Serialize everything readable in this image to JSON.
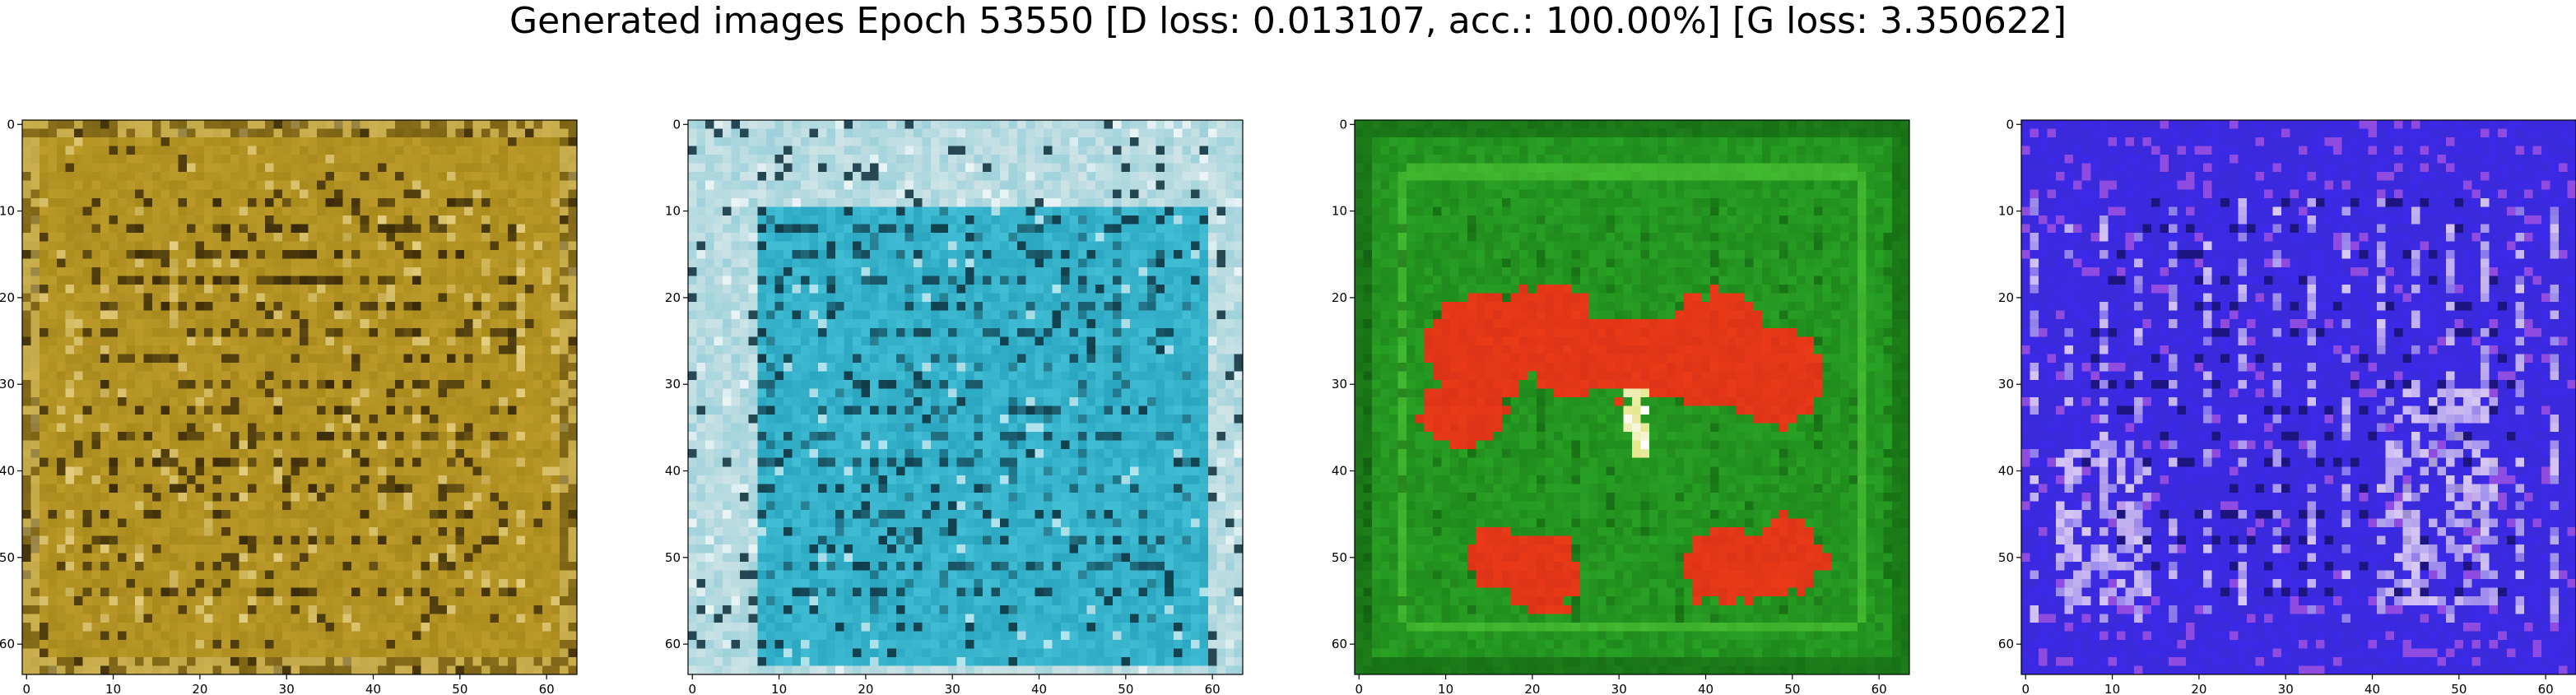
{
  "figure": {
    "title": "Generated images Epoch 53550 [D loss: 0.013107, acc.: 100.00%] [G loss: 3.350622]"
  },
  "axes": {
    "x_ticks": [
      "0",
      "10",
      "20",
      "30",
      "40",
      "50",
      "60"
    ],
    "y_ticks": [
      "0",
      "10",
      "20",
      "30",
      "40",
      "50",
      "60"
    ],
    "tick_values": [
      0,
      10,
      20,
      30,
      40,
      50,
      60
    ],
    "extent": [
      -0.5,
      63.5
    ]
  },
  "panels": [
    {
      "id": "panel-1",
      "description_colors": {
        "base": "#a88a1c",
        "light": "#e9d48a",
        "dark": "#3a2a08",
        "accent": "#c9a632"
      }
    },
    {
      "id": "panel-2",
      "description_colors": {
        "base": "#2aa6c0",
        "light": "#cfe4e6",
        "dark": "#0c2e3a",
        "accent": "#59d6ea"
      }
    },
    {
      "id": "panel-3",
      "description_colors": {
        "base": "#1f8a1c",
        "light": "#2fb02a",
        "dark": "#0b4a0a",
        "accent": "#ea3a18"
      }
    },
    {
      "id": "panel-4",
      "description_colors": {
        "base": "#3a2ad8",
        "light": "#d8c8f4",
        "dark": "#0a0640",
        "accent": "#b35ae0"
      }
    }
  ]
}
